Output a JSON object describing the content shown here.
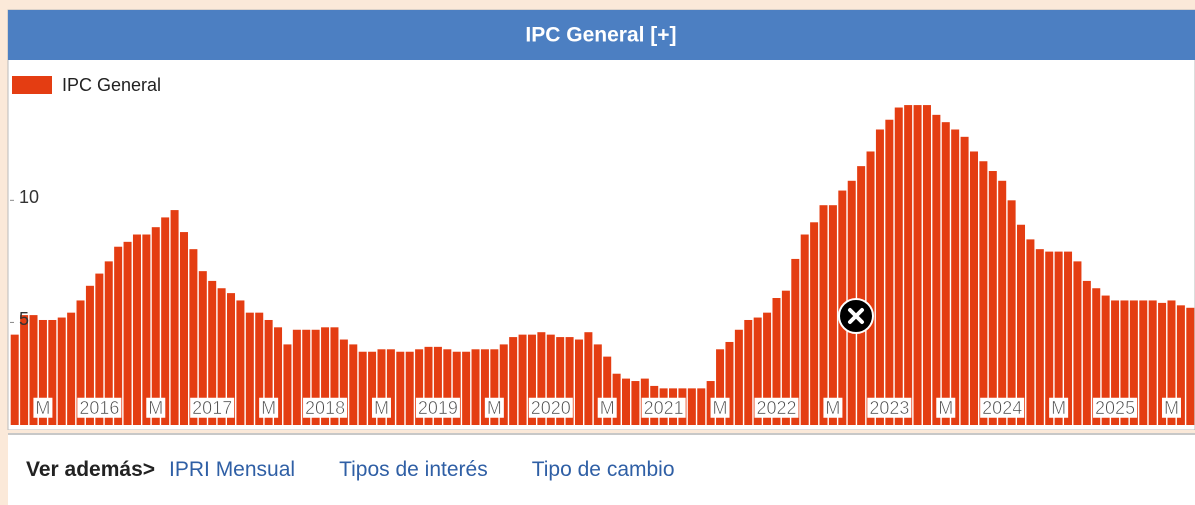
{
  "chart_data": {
    "type": "bar",
    "title": "IPC General [+]",
    "categories": [
      null,
      null,
      null,
      "M",
      null,
      null,
      null,
      null,
      null,
      "2016",
      null,
      null,
      null,
      null,
      null,
      "M",
      null,
      null,
      null,
      null,
      null,
      "2017",
      null,
      null,
      null,
      null,
      null,
      "M",
      null,
      null,
      null,
      null,
      null,
      "2018",
      null,
      null,
      null,
      null,
      null,
      "M",
      null,
      null,
      null,
      null,
      null,
      "2019",
      null,
      null,
      null,
      null,
      null,
      "M",
      null,
      null,
      null,
      null,
      null,
      "2020",
      null,
      null,
      null,
      null,
      null,
      "M",
      null,
      null,
      null,
      null,
      null,
      "2021",
      null,
      null,
      null,
      null,
      null,
      "M",
      null,
      null,
      null,
      null,
      null,
      "2022",
      null,
      null,
      null,
      null,
      null,
      "M",
      null,
      null,
      null,
      null,
      null,
      "2023",
      null,
      null,
      null,
      null,
      null,
      "M",
      null,
      null,
      null,
      null,
      null,
      "2024",
      null,
      null,
      null,
      null,
      null,
      "M",
      null,
      null,
      null,
      null,
      null,
      "2025",
      null,
      null,
      null,
      null,
      null,
      "M",
      null,
      null
    ],
    "series": [
      {
        "name": "IPC General",
        "color": "#e43d12",
        "values": [
          4.5,
          5.3,
          5.3,
          5.1,
          5.1,
          5.2,
          5.4,
          5.9,
          6.5,
          7.0,
          7.5,
          8.1,
          8.3,
          8.6,
          8.6,
          8.9,
          9.3,
          9.6,
          8.7,
          8.0,
          7.1,
          6.7,
          6.4,
          6.2,
          5.9,
          5.4,
          5.4,
          5.1,
          4.8,
          4.1,
          4.7,
          4.7,
          4.7,
          4.8,
          4.8,
          4.3,
          4.1,
          3.8,
          3.8,
          3.9,
          3.9,
          3.8,
          3.8,
          3.9,
          4.0,
          4.0,
          3.9,
          3.8,
          3.8,
          3.9,
          3.9,
          3.9,
          4.1,
          4.4,
          4.5,
          4.5,
          4.6,
          4.5,
          4.4,
          4.4,
          4.3,
          4.6,
          4.1,
          3.6,
          2.9,
          2.7,
          2.6,
          2.7,
          2.4,
          2.3,
          2.3,
          2.3,
          2.3,
          2.3,
          2.6,
          3.9,
          4.2,
          4.7,
          5.1,
          5.2,
          5.4,
          6.0,
          6.3,
          7.6,
          8.6,
          9.1,
          9.8,
          9.8,
          10.4,
          10.8,
          11.4,
          12.0,
          12.9,
          13.3,
          13.8,
          13.9,
          13.9,
          13.9,
          13.5,
          13.2,
          12.9,
          12.6,
          12.0,
          11.6,
          11.2,
          10.8,
          10.0,
          9.0,
          8.4,
          8.0,
          7.9,
          7.9,
          7.9,
          7.5,
          6.7,
          6.4,
          6.1,
          5.9,
          5.9,
          5.9,
          5.9,
          5.9,
          5.8,
          5.9,
          5.7,
          5.6
        ]
      }
    ],
    "ylim": [
      0.8,
      15.5
    ],
    "yticks": [
      5,
      10
    ],
    "legend": "top-left"
  },
  "see_also": {
    "label": "Ver además>",
    "links": [
      "IPRI Mensual",
      "Tipos de interés",
      "Tipo de cambio"
    ]
  }
}
